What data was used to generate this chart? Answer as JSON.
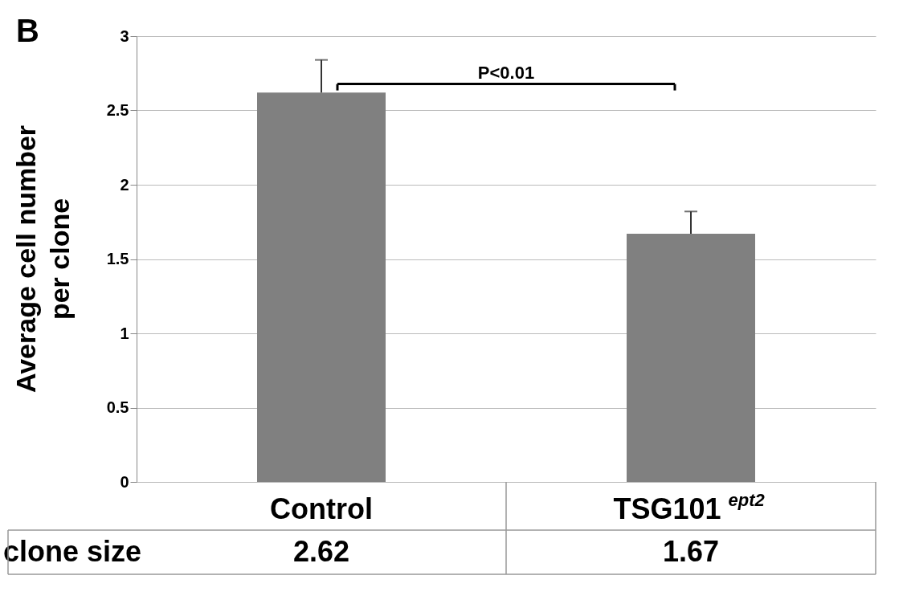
{
  "chart_data": {
    "type": "bar",
    "title": "B",
    "ylabel": "Average cell number per clone",
    "categories": [
      "Control",
      "TSG101$^{ept2}$"
    ],
    "series": [
      {
        "color": "#808080",
        "values": [
          2.62,
          1.67
        ],
        "errors": [
          [
            2.62,
            2.84
          ],
          [
            1.67,
            1.82
          ]
        ]
      }
    ],
    "ylim": [
      0,
      3
    ],
    "yticks": [
      0,
      0.5,
      1,
      1.5,
      2,
      2.5,
      3
    ],
    "grid": "y",
    "data_labels": true,
    "annotations": [
      "P<0.01",
      "clone size"
    ]
  }
}
